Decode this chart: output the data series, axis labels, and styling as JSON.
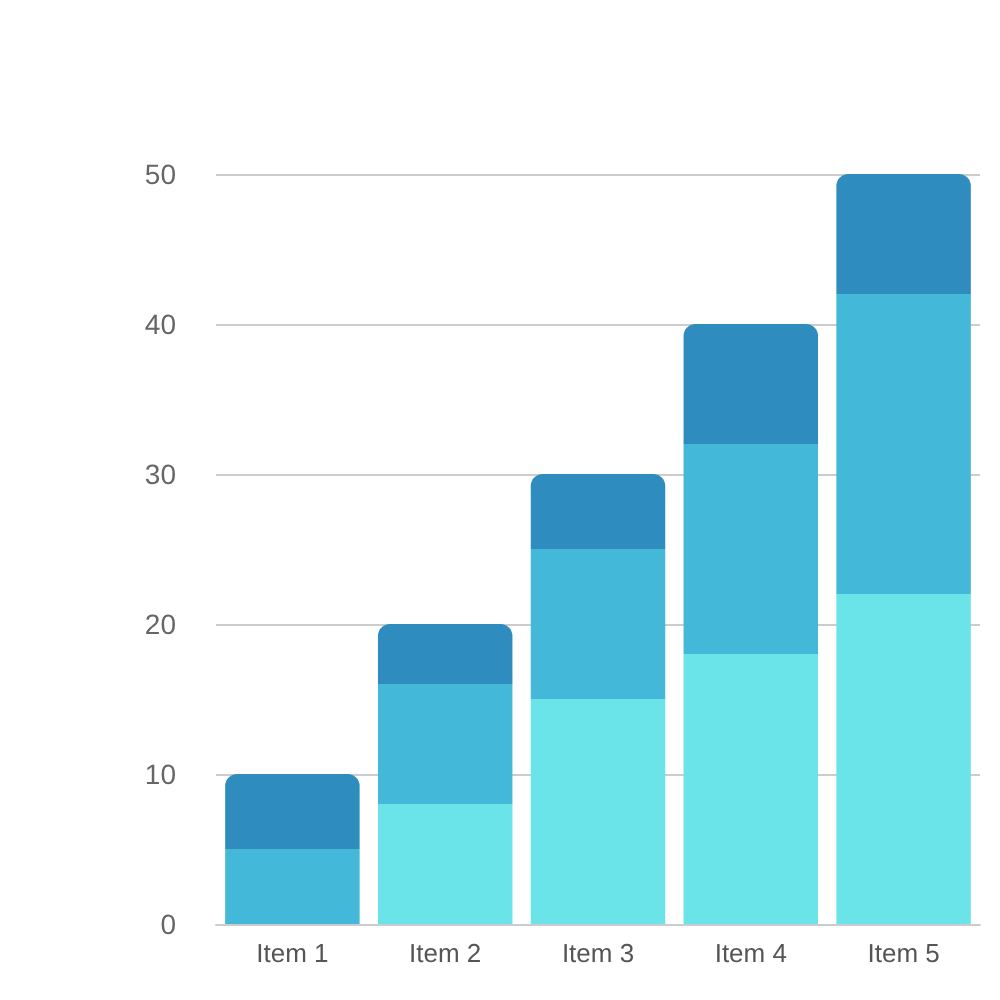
{
  "chart_data": {
    "type": "bar",
    "stacked": true,
    "categories": [
      "Item 1",
      "Item 2",
      "Item 3",
      "Item 4",
      "Item 5"
    ],
    "series": [
      {
        "color": "#6ae4e9",
        "values": [
          0,
          8,
          15,
          18,
          22
        ]
      },
      {
        "color": "#43b8d8",
        "values": [
          5,
          8,
          10,
          14,
          20
        ]
      },
      {
        "color": "#2e8cbf",
        "values": [
          5,
          4,
          5,
          8,
          8
        ]
      }
    ],
    "ylim": [
      0,
      50
    ],
    "yticks": [
      0,
      10,
      20,
      30,
      40,
      50
    ],
    "grid": "y"
  }
}
